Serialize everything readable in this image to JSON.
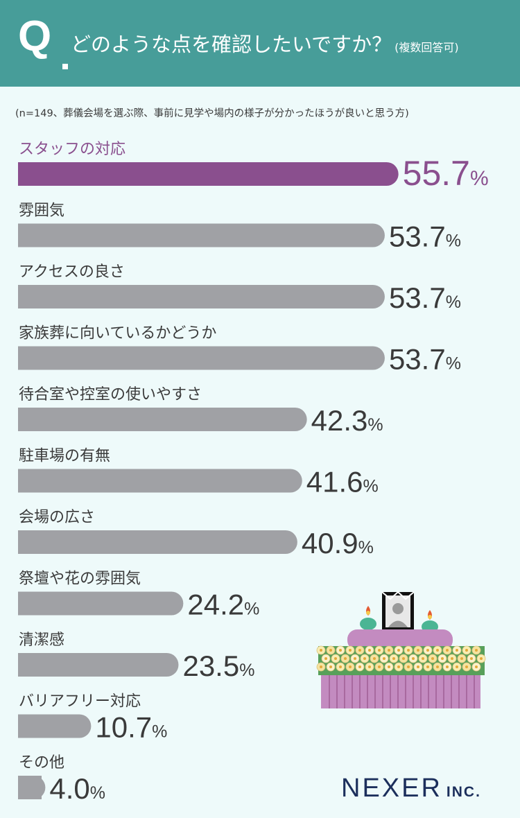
{
  "header": {
    "q_letter": "Q",
    "question": "どのような点を確認したいですか？",
    "question_note": "(複数回答可)"
  },
  "sample_note": "(n=149、葬儀会場を選ぶ際、事前に見学や場内の様子が分かったほうが良いと思う方)",
  "brand": {
    "name": "NEXER",
    "suffix": "INC."
  },
  "colors": {
    "header_bg": "#479d99",
    "highlight_bar": "#8a4f8e",
    "default_bar": "#a0a1a5",
    "highlight_text": "#8a4f8e",
    "default_text": "#3a3a3a"
  },
  "chart_data": {
    "type": "bar",
    "orientation": "horizontal",
    "unit": "%",
    "categories": [
      "スタッフの対応",
      "雰囲気",
      "アクセスの良さ",
      "家族葬に向いているかどうか",
      "待合室や控室の使いやすさ",
      "駐車場の有無",
      "会場の広さ",
      "祭壇や花の雰囲気",
      "清潔感",
      "バリアフリー対応",
      "その他"
    ],
    "values": [
      55.7,
      53.7,
      53.7,
      53.7,
      42.3,
      41.6,
      40.9,
      24.2,
      23.5,
      10.7,
      4.0
    ],
    "value_labels": [
      "55.7",
      "53.7",
      "53.7",
      "53.7",
      "42.3",
      "41.6",
      "40.9",
      "24.2",
      "23.5",
      "10.7",
      "4.0"
    ],
    "highlight_index": 0,
    "xlim": [
      0,
      100
    ],
    "grid": false,
    "legend": "none"
  }
}
